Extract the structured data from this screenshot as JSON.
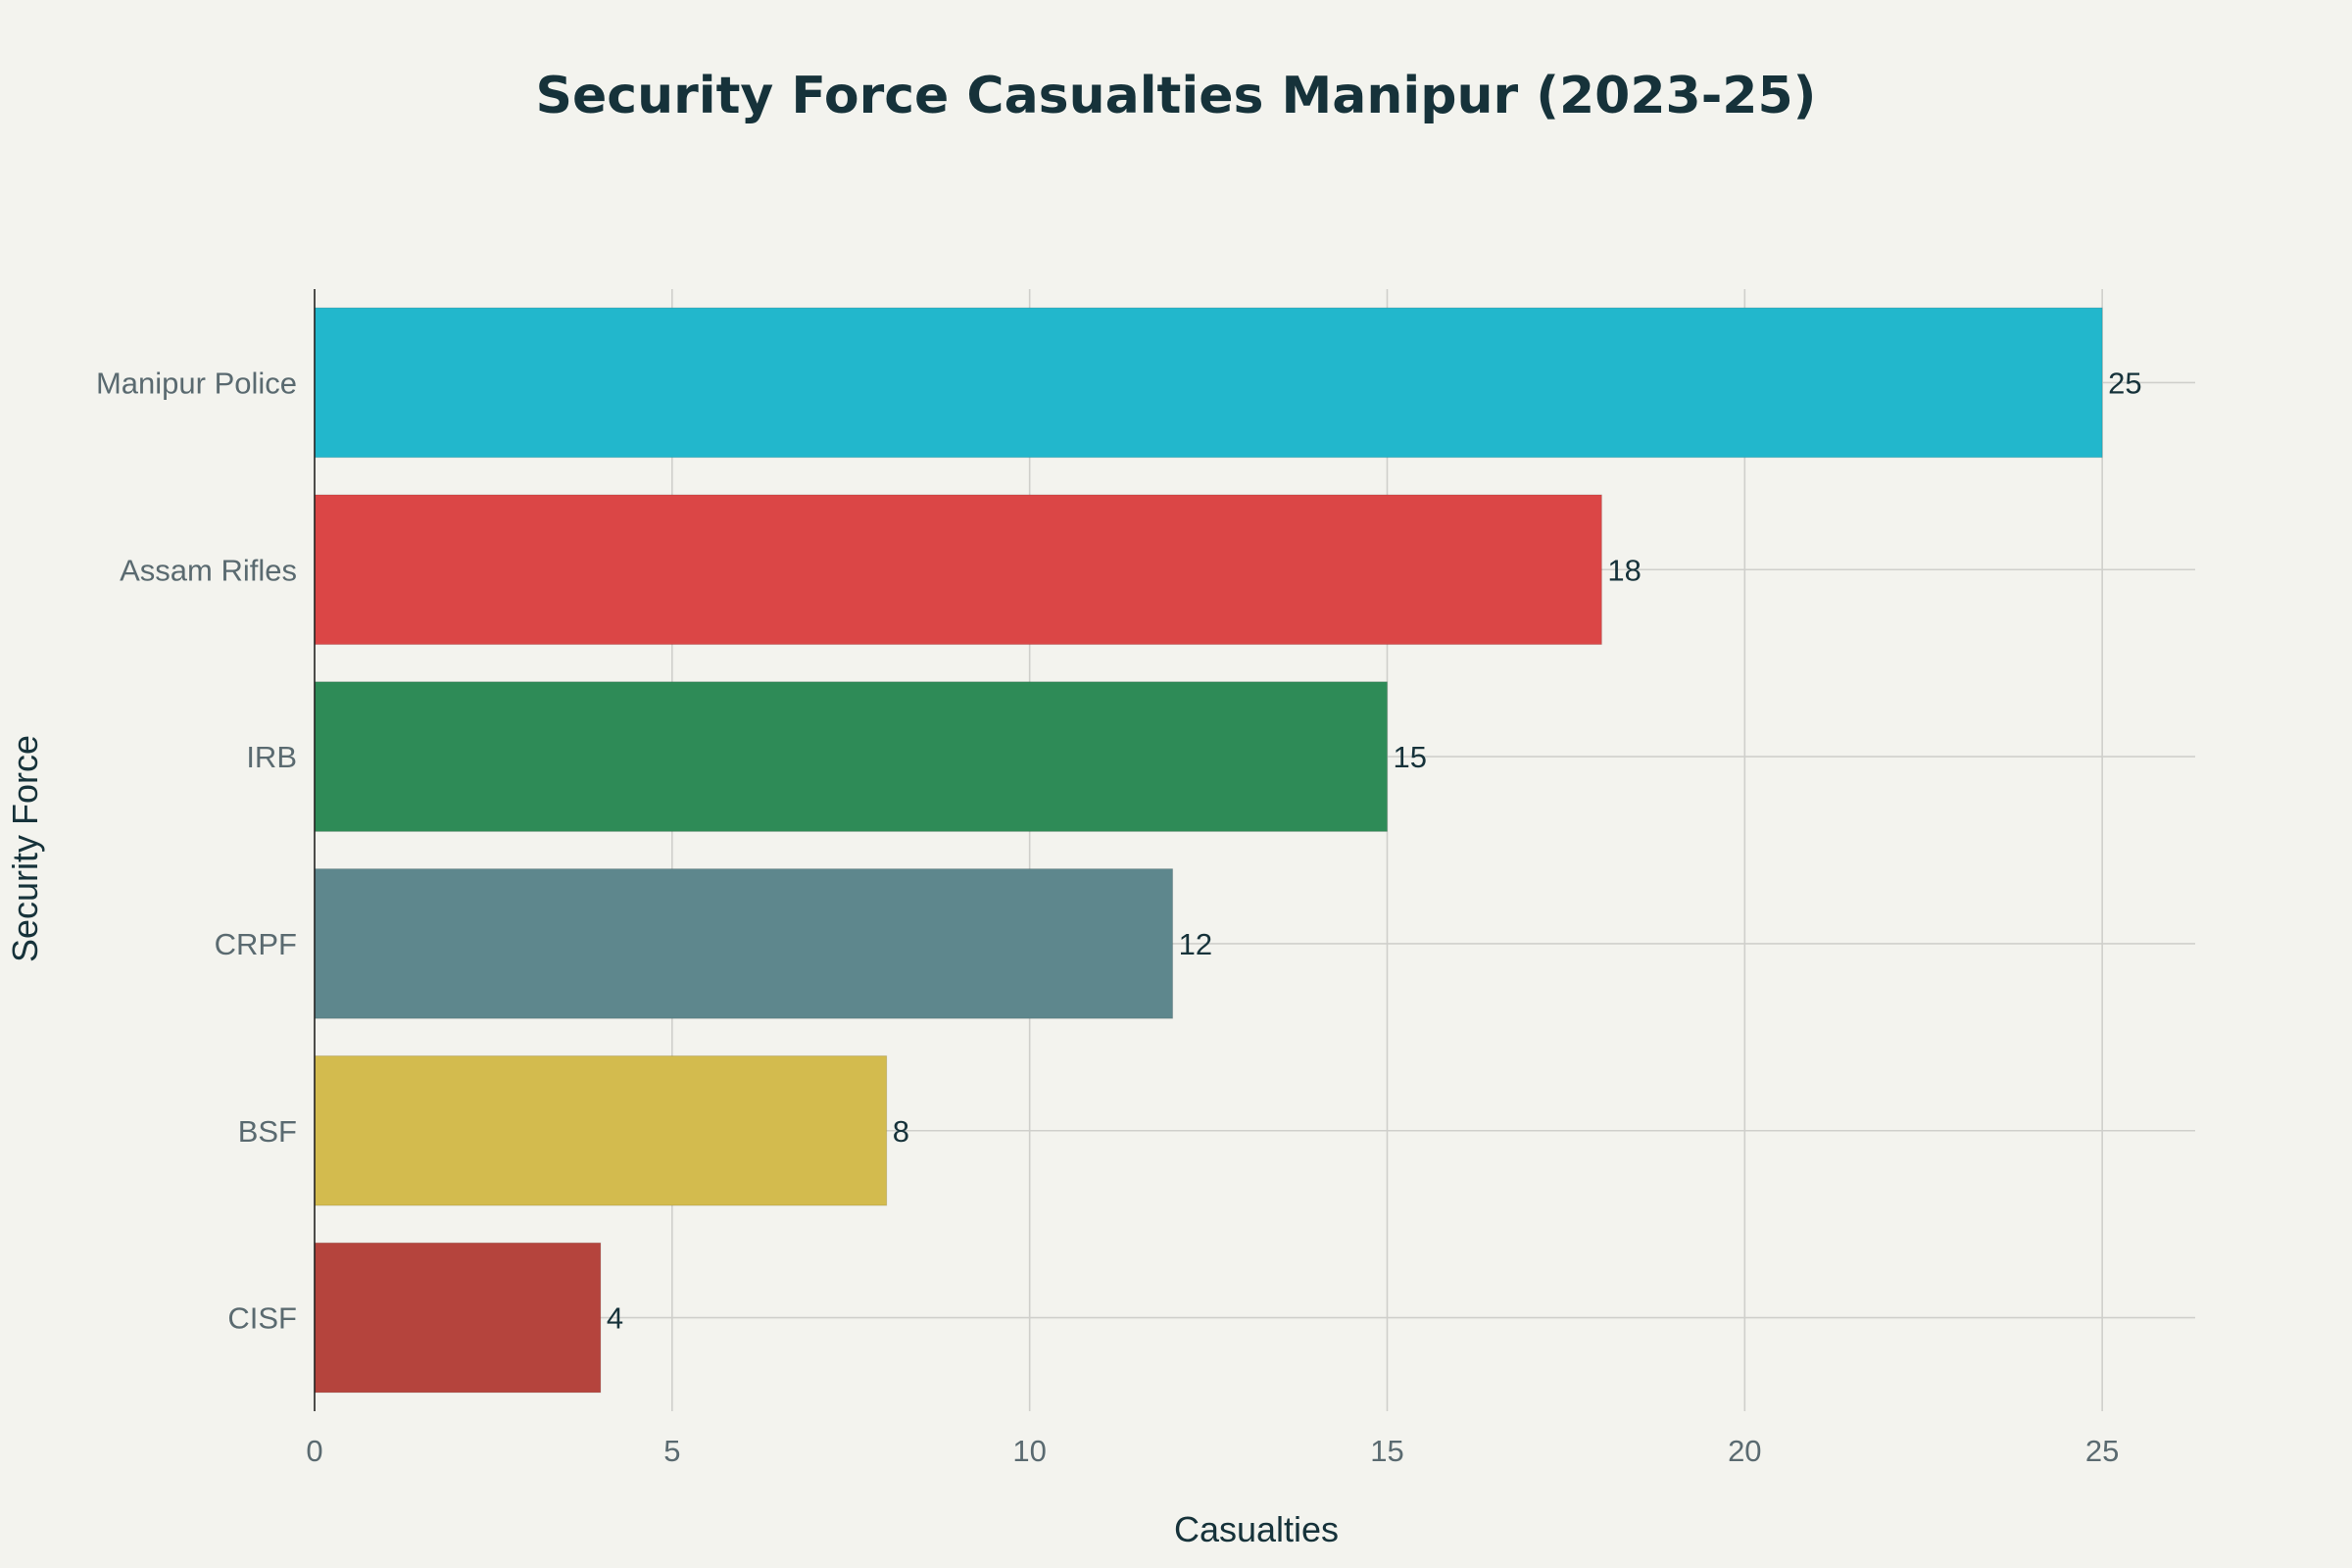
{
  "chart_data": {
    "type": "bar",
    "orientation": "horizontal",
    "title": "Security Force Casualties Manipur (2023-25)",
    "xlabel": "Casualties",
    "ylabel": "Security Force",
    "xlim": [
      0,
      26.3
    ],
    "xticks": [
      0,
      5,
      10,
      15,
      20,
      25
    ],
    "grid": true,
    "legend": "none",
    "categories": [
      "Manipur Police",
      "Assam Rifles",
      "IRB",
      "CRPF",
      "BSF",
      "CISF"
    ],
    "values": [
      25,
      18,
      15,
      12,
      8,
      4
    ],
    "colors": [
      "#22b7cc",
      "#db4646",
      "#2e8b57",
      "#5e878d",
      "#d3bb4e",
      "#b5443d"
    ]
  }
}
